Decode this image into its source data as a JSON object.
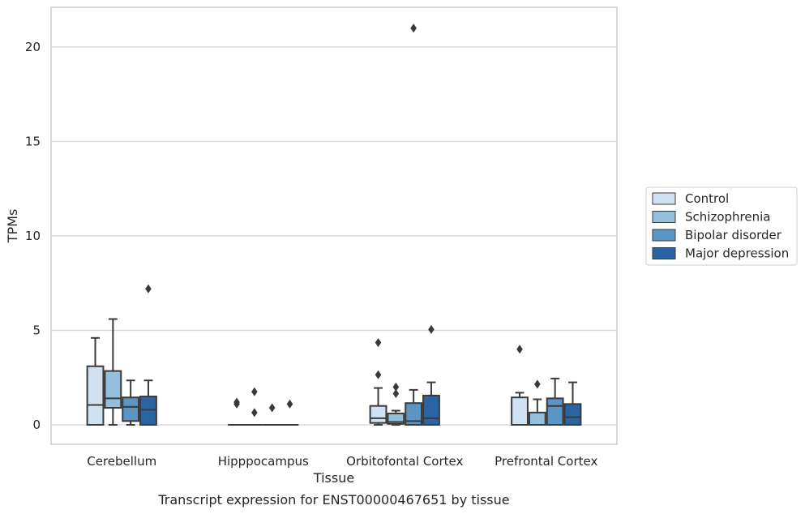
{
  "chart_data": {
    "type": "box",
    "title": "Transcript expression for ENST00000467651 by tissue",
    "xlabel": "Tissue",
    "ylabel": "TPMs",
    "ylim": [
      -1,
      22
    ],
    "yticks": [
      0,
      5,
      10,
      15,
      20
    ],
    "grid": "horizontal",
    "legend_position": "right",
    "categories": [
      "Cerebellum",
      "Hipppocampus",
      "Orbitofontal Cortex",
      "Prefrontal Cortex"
    ],
    "series": [
      {
        "name": "Control",
        "color": "#d0e2f2",
        "boxes": [
          {
            "whislo": 0.0,
            "q1": 0.0,
            "med": 1.05,
            "q3": 3.1,
            "whishi": 4.6,
            "fliers": []
          },
          {
            "whislo": 0.0,
            "q1": 0.0,
            "med": 0.0,
            "q3": 0.0,
            "whishi": 0.0,
            "fliers": [
              1.1,
              1.2
            ]
          },
          {
            "whislo": 0.0,
            "q1": 0.1,
            "med": 0.35,
            "q3": 1.0,
            "whishi": 1.95,
            "fliers": [
              2.65,
              4.35
            ]
          },
          {
            "whislo": 0.0,
            "q1": 0.0,
            "med": 0.0,
            "q3": 1.45,
            "whishi": 1.7,
            "fliers": [
              4.0
            ]
          }
        ]
      },
      {
        "name": "Schizophrenia",
        "color": "#95c0dd",
        "boxes": [
          {
            "whislo": 0.0,
            "q1": 0.9,
            "med": 1.4,
            "q3": 2.85,
            "whishi": 5.6,
            "fliers": []
          },
          {
            "whislo": 0.0,
            "q1": 0.0,
            "med": 0.0,
            "q3": 0.0,
            "whishi": 0.0,
            "fliers": [
              0.65,
              1.75
            ]
          },
          {
            "whislo": 0.0,
            "q1": 0.05,
            "med": 0.15,
            "q3": 0.6,
            "whishi": 0.75,
            "fliers": [
              1.65,
              2.0
            ]
          },
          {
            "whislo": 0.0,
            "q1": 0.0,
            "med": 0.0,
            "q3": 0.65,
            "whishi": 1.35,
            "fliers": [
              2.15
            ]
          }
        ]
      },
      {
        "name": "Bipolar disorder",
        "color": "#5a95c4",
        "boxes": [
          {
            "whislo": 0.0,
            "q1": 0.2,
            "med": 0.95,
            "q3": 1.45,
            "whishi": 2.35,
            "fliers": []
          },
          {
            "whislo": 0.0,
            "q1": 0.0,
            "med": 0.0,
            "q3": 0.0,
            "whishi": 0.0,
            "fliers": [
              0.9
            ]
          },
          {
            "whislo": 0.0,
            "q1": 0.0,
            "med": 0.2,
            "q3": 1.15,
            "whishi": 1.85,
            "fliers": [
              21.0
            ]
          },
          {
            "whislo": 0.0,
            "q1": 0.0,
            "med": 1.0,
            "q3": 1.4,
            "whishi": 2.45,
            "fliers": []
          }
        ]
      },
      {
        "name": "Major depression",
        "color": "#2b64a4",
        "boxes": [
          {
            "whislo": 0.0,
            "q1": 0.0,
            "med": 0.8,
            "q3": 1.5,
            "whishi": 2.35,
            "fliers": [
              7.2
            ]
          },
          {
            "whislo": 0.0,
            "q1": 0.0,
            "med": 0.0,
            "q3": 0.0,
            "whishi": 0.0,
            "fliers": [
              1.1
            ]
          },
          {
            "whislo": 0.0,
            "q1": 0.0,
            "med": 0.35,
            "q3": 1.55,
            "whishi": 2.25,
            "fliers": [
              5.05
            ]
          },
          {
            "whislo": 0.0,
            "q1": 0.0,
            "med": 0.4,
            "q3": 1.1,
            "whishi": 2.25,
            "fliers": []
          }
        ]
      }
    ]
  }
}
